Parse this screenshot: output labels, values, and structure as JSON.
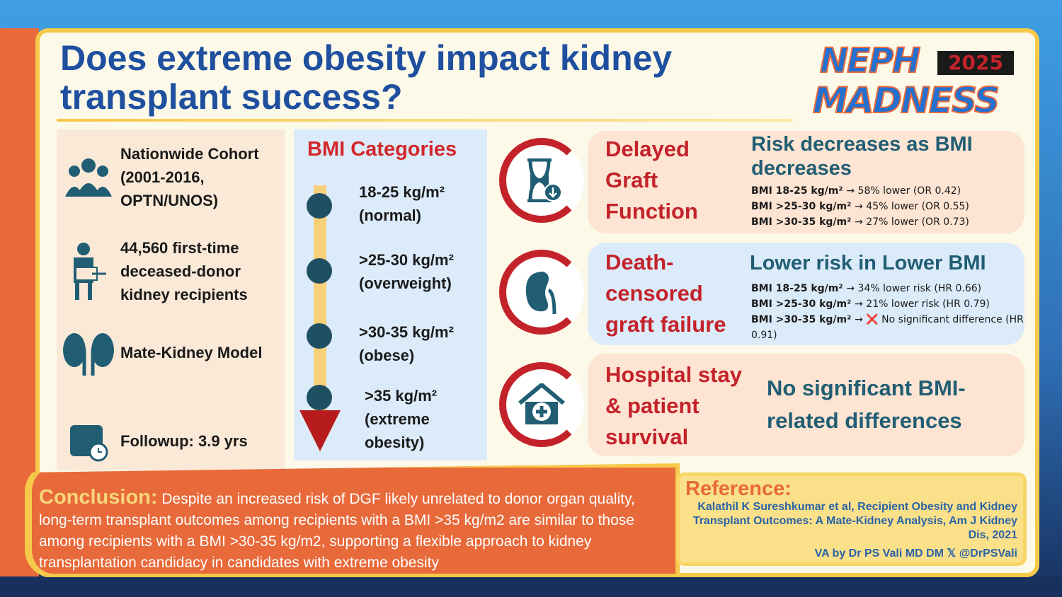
{
  "title": "Does extreme obesity impact kidney transplant success?",
  "logo": {
    "line1": "NEPH",
    "year": "2025",
    "line2": "MADNESS"
  },
  "study": [
    {
      "icon": "people-group-icon",
      "text": "Nationwide Cohort (2001-2016, OPTN/UNOS)"
    },
    {
      "icon": "kidney-recipient-icon",
      "text": "44,560 first-time deceased-donor kidney recipients"
    },
    {
      "icon": "kidneys-icon",
      "text": "Mate-Kidney Model"
    },
    {
      "icon": "calendar-clock-icon",
      "text": "Followup: 3.9 yrs"
    }
  ],
  "bmi": {
    "heading": "BMI Categories",
    "items": [
      {
        "range": "18-25 kg/m²",
        "label": "(normal)"
      },
      {
        "range": ">25-30 kg/m²",
        "label": "(overweight)"
      },
      {
        "range": ">30-35 kg/m²",
        "label": "(obese)"
      },
      {
        "range": ">35 kg/m²",
        "label": "(extreme obesity)"
      }
    ]
  },
  "outcomes": [
    {
      "icon": "hourglass-icon",
      "title": "Delayed Graft Function",
      "headline": "Risk decreases as BMI decreases",
      "lines": [
        {
          "bmi": "BMI 18-25 kg/m²",
          "result": "→ 58% lower (OR 0.42)"
        },
        {
          "bmi": "BMI >25-30 kg/m²",
          "result": "→ 45% lower (OR 0.55)"
        },
        {
          "bmi": "BMI >30-35 kg/m²",
          "result": "→ 27% lower (OR 0.73)"
        }
      ]
    },
    {
      "icon": "kidney-icon",
      "title": "Death-censored graft failure",
      "headline": "Lower risk in Lower BMI",
      "lines": [
        {
          "bmi": "BMI 18-25 kg/m²",
          "result": "→ 34% lower risk (HR 0.66)"
        },
        {
          "bmi": "BMI >25-30 kg/m²",
          "result": "→ 21% lower risk (HR 0.79)"
        },
        {
          "bmi": "BMI >30-35 kg/m²",
          "result": "→ ❌ No significant difference (HR 0.91)"
        }
      ]
    },
    {
      "icon": "hospital-icon",
      "title": "Hospital stay & patient survival",
      "headline": "No significant BMI-related differences"
    }
  ],
  "conclusion": {
    "label": "Conclusion:",
    "text": "Despite an increased risk of DGF likely unrelated to donor organ quality, long-term transplant outcomes among recipients with a BMI >35 kg/m2 are similar to those among recipients with a BMI >30-35 kg/m2, supporting a flexible approach to kidney transplantation candidacy in candidates with extreme obesity"
  },
  "reference": {
    "label": "Reference:",
    "citation": "Kalathil K Sureshkumar et al, Recipient Obesity and Kidney Transplant Outcomes: A Mate-Kidney Analysis, Am J Kidney Dis, 2021",
    "credit": "VA by Dr PS Vali MD DM 𝕏 @DrPSVali"
  },
  "colors": {
    "title": "#1f4f9f",
    "accent_red": "#c4222a",
    "orange": "#e8693a",
    "yellow": "#f6c94a"
  }
}
